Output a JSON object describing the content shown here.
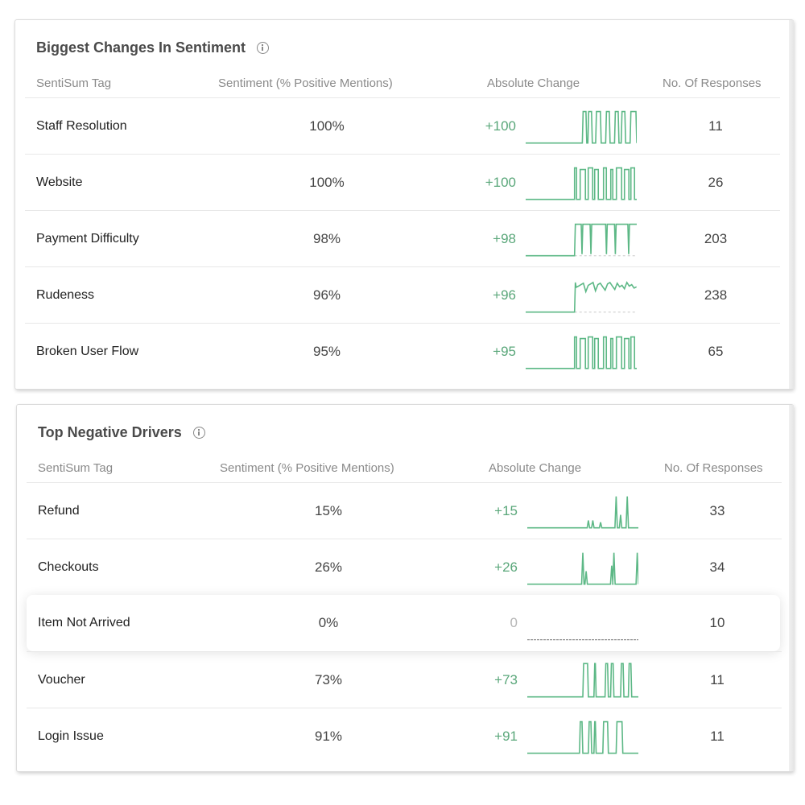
{
  "panels": [
    {
      "title": "Biggest Changes In Sentiment",
      "headers": {
        "tag": "SentiSum Tag",
        "sentiment": "Sentiment (% Positive Mentions)",
        "change": "Absolute Change",
        "responses": "No. Of Responses"
      },
      "rows": [
        {
          "tag": "Staff Resolution",
          "sentiment": "100%",
          "change": "+100",
          "responses": "11",
          "spark": "pulse_sparse"
        },
        {
          "tag": "Website",
          "sentiment": "100%",
          "change": "+100",
          "responses": "26",
          "spark": "pulse_dense"
        },
        {
          "tag": "Payment Difficulty",
          "sentiment": "98%",
          "change": "+98",
          "responses": "203",
          "spark": "plateau_gaps"
        },
        {
          "tag": "Rudeness",
          "sentiment": "96%",
          "change": "+96",
          "responses": "238",
          "spark": "plateau_noisy"
        },
        {
          "tag": "Broken User Flow",
          "sentiment": "95%",
          "change": "+95",
          "responses": "65",
          "spark": "pulse_dense2"
        }
      ]
    },
    {
      "title": "Top Negative Drivers",
      "headers": {
        "tag": "SentiSum Tag",
        "sentiment": "Sentiment (% Positive Mentions)",
        "change": "Absolute Change",
        "responses": "No. Of Responses"
      },
      "rows": [
        {
          "tag": "Refund",
          "sentiment": "15%",
          "change": "+15",
          "responses": "33",
          "spark": "spikes_late"
        },
        {
          "tag": "Checkouts",
          "sentiment": "26%",
          "change": "+26",
          "responses": "34",
          "spark": "spikes_mid"
        },
        {
          "tag": "Item Not Arrived",
          "sentiment": "0%",
          "change": "0",
          "responses": "10",
          "spark": "flat",
          "highlighted": true
        },
        {
          "tag": "Voucher",
          "sentiment": "73%",
          "change": "+73",
          "responses": "11",
          "spark": "pulse_voucher"
        },
        {
          "tag": "Login Issue",
          "sentiment": "91%",
          "change": "+91",
          "responses": "11",
          "spark": "pulse_login"
        }
      ]
    }
  ],
  "colors": {
    "positive": "#5aa77a",
    "neutral": "#b5b5b5",
    "spark_line": "#5db886",
    "baseline_dashed": "#c8c8c8"
  }
}
